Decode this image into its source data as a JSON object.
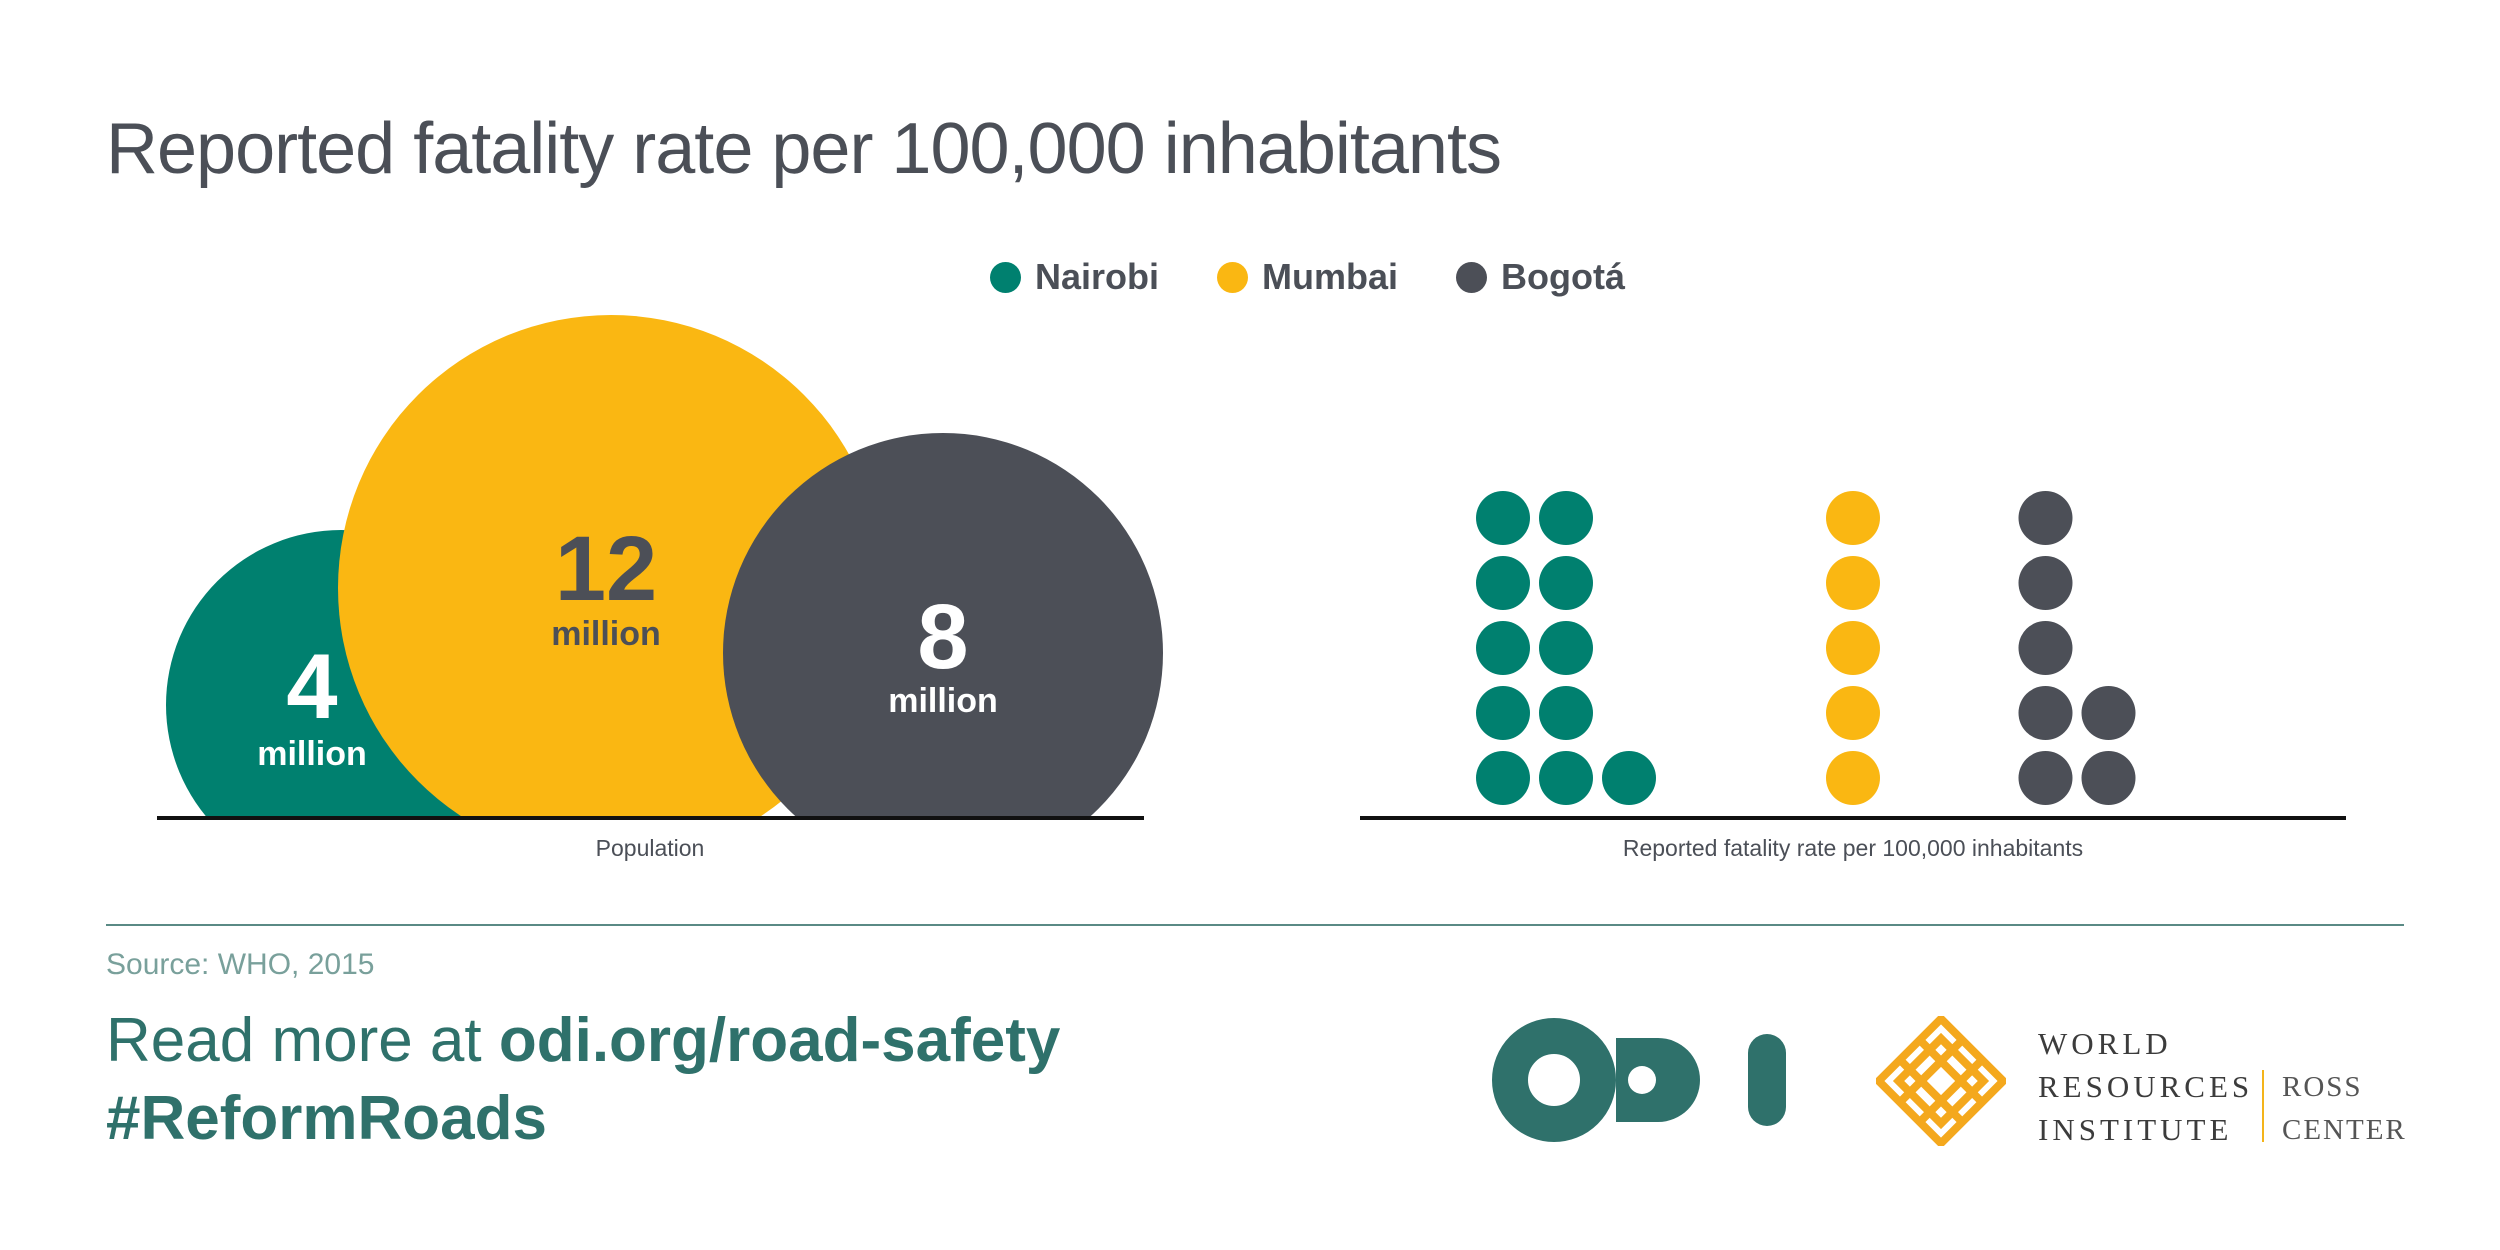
{
  "title": "Reported fatality rate per 100,000 inhabitants",
  "colors": {
    "nairobi": "#00806f",
    "mumbai": "#fab712",
    "bogota": "#4c4f57",
    "brand_teal": "#2f716b"
  },
  "legend": [
    {
      "label": "Nairobi",
      "color": "#00806f"
    },
    {
      "label": "Mumbai",
      "color": "#fab712"
    },
    {
      "label": "Bogotá",
      "color": "#4c4f57"
    }
  ],
  "chart_data": [
    {
      "type": "bubble",
      "xlabel": "Population",
      "series": [
        {
          "name": "Nairobi",
          "value": 4,
          "value_label": "4",
          "unit": "million",
          "color": "#00806f"
        },
        {
          "name": "Mumbai",
          "value": 12,
          "value_label": "12",
          "unit": "million",
          "color": "#fab712"
        },
        {
          "name": "Bogotá",
          "value": 8,
          "value_label": "8",
          "unit": "million",
          "color": "#4c4f57"
        }
      ]
    },
    {
      "type": "dot-plot",
      "xlabel": "Reported fatality rate per 100,000 inhabitants",
      "series": [
        {
          "name": "Nairobi",
          "value": 11,
          "color": "#00806f"
        },
        {
          "name": "Mumbai",
          "value": 5,
          "color": "#fab712"
        },
        {
          "name": "Bogotá",
          "value": 7,
          "color": "#4c4f57"
        }
      ]
    }
  ],
  "footer": {
    "source": "Source: WHO, 2015",
    "read_more_prefix": "Read more at ",
    "read_more_link": "odi.org/road-safety",
    "hashtag": "#ReformRoads"
  },
  "logos": {
    "odi": "odi",
    "wri_lines": [
      "WORLD",
      "RESOURCES",
      "INSTITUTE"
    ],
    "ross_lines": [
      "ROSS",
      "CENTER"
    ]
  }
}
